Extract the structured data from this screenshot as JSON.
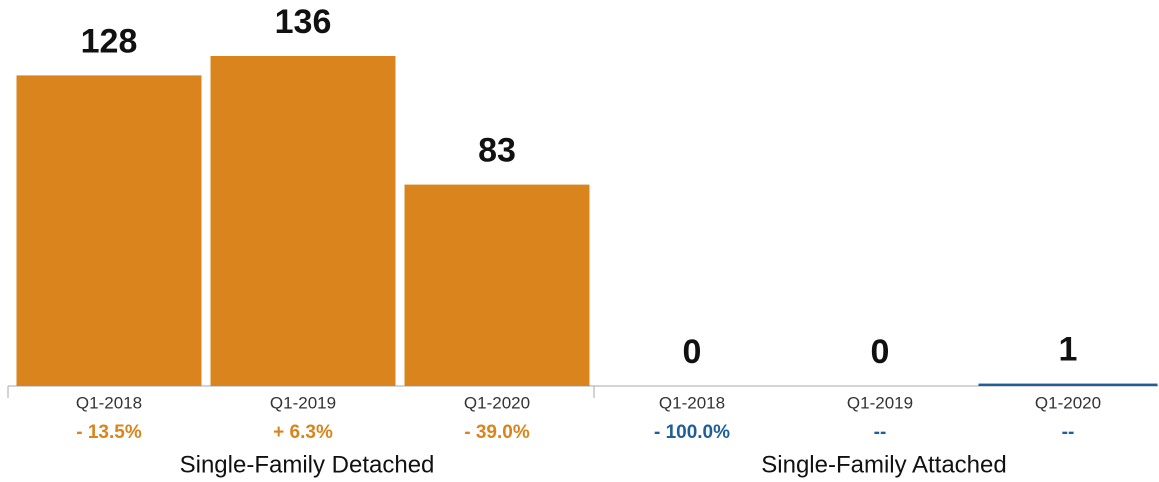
{
  "chart_data": [
    {
      "type": "bar",
      "title": "Single-Family Detached",
      "color": "#d9841c",
      "categories": [
        "Q1-2018",
        "Q1-2019",
        "Q1-2020"
      ],
      "values": [
        128,
        136,
        83
      ],
      "change_labels": [
        "- 13.5%",
        "+ 6.3%",
        "- 39.0%"
      ]
    },
    {
      "type": "bar",
      "title": "Single-Family Attached",
      "color": "#1f5f99",
      "categories": [
        "Q1-2018",
        "Q1-2019",
        "Q1-2020"
      ],
      "values": [
        0,
        0,
        1
      ],
      "change_labels": [
        "- 100.0%",
        "--",
        "--"
      ]
    }
  ]
}
